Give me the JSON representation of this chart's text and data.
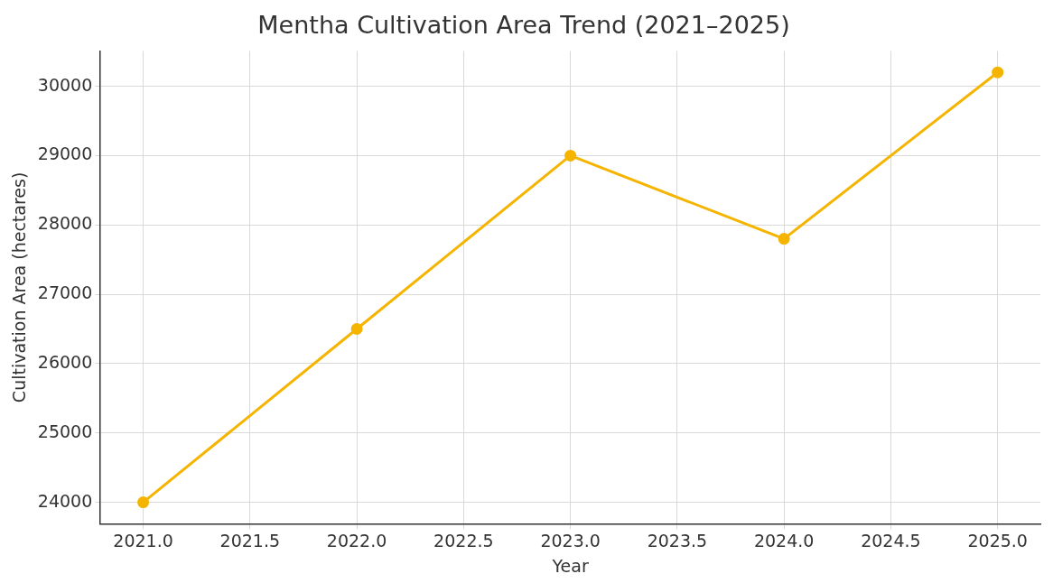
{
  "chart_data": {
    "type": "line",
    "title": "Mentha Cultivation Area Trend (2021–2025)",
    "xlabel": "Year",
    "ylabel": "Cultivation Area (hectares)",
    "x": [
      2021,
      2022,
      2023,
      2024,
      2025
    ],
    "series": [
      {
        "color": "#f5b400",
        "values": [
          24000,
          26500,
          29000,
          27800,
          30200
        ]
      }
    ],
    "xlim": [
      2020.8,
      2025.2
    ],
    "xticks": [
      {
        "value": 2021,
        "label": "2021.0"
      },
      {
        "value": 2021.5,
        "label": "2021.5"
      },
      {
        "value": 2022,
        "label": "2022.0"
      },
      {
        "value": 2022.5,
        "label": "2022.5"
      },
      {
        "value": 2023,
        "label": "2023.0"
      },
      {
        "value": 2023.5,
        "label": "2023.5"
      },
      {
        "value": 2024,
        "label": "2024.0"
      },
      {
        "value": 2024.5,
        "label": "2024.5"
      },
      {
        "value": 2025,
        "label": "2025.0"
      }
    ],
    "ylim": [
      23690,
      30510
    ],
    "yticks": [
      24000,
      25000,
      26000,
      27000,
      28000,
      29000,
      30000
    ],
    "grid": true,
    "legend": false,
    "marker": "circle",
    "line_style": "solid"
  }
}
